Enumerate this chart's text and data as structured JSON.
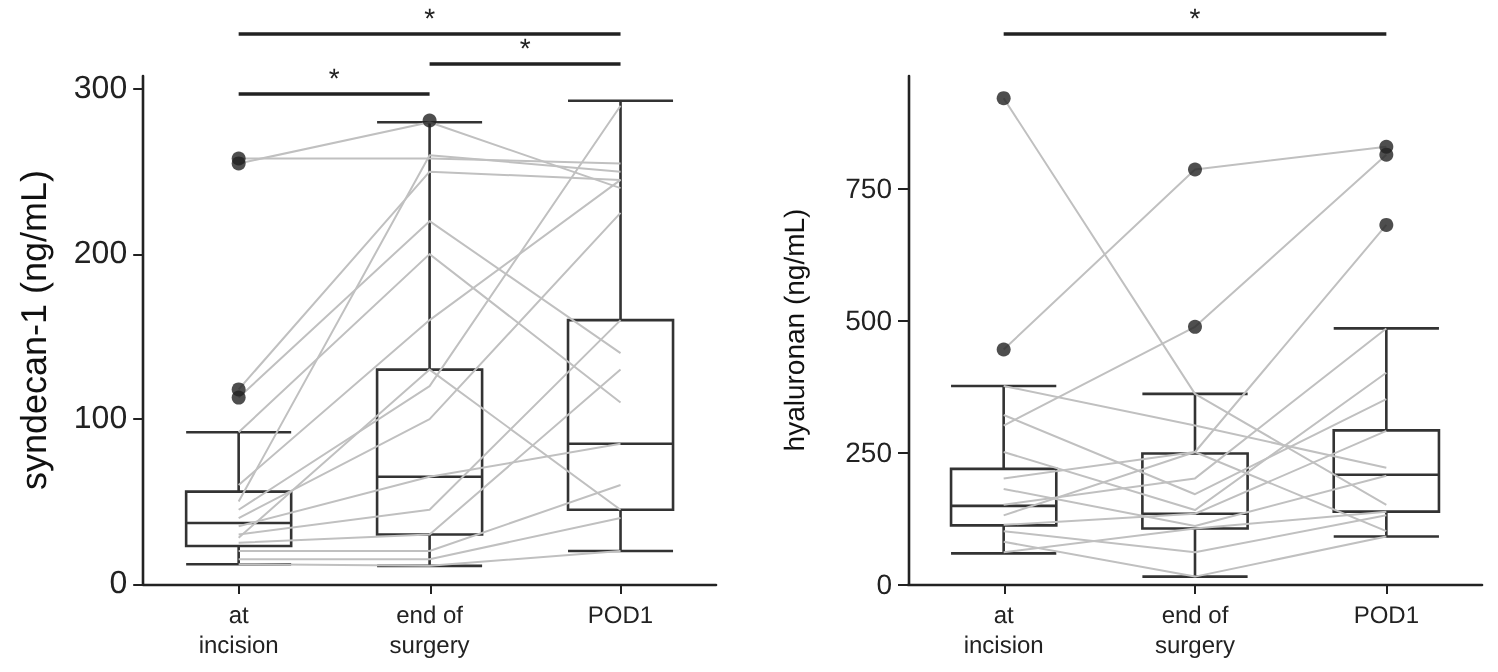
{
  "chart_data": [
    {
      "type": "box",
      "ylabel": "syndecan-1 (ng/mL)",
      "categories": [
        "at\nincision",
        "end of\nsurgery",
        "POD1"
      ],
      "ylim": [
        0,
        308
      ],
      "yticks": [
        0,
        100,
        200,
        300
      ],
      "grid": false,
      "annotations": [
        "*",
        "*",
        "*"
      ],
      "boxes": [
        {
          "low": 12,
          "q1": 23,
          "median": 37,
          "q3": 56,
          "high": 92,
          "outliers": [
            113,
            118,
            255,
            258
          ]
        },
        {
          "low": 11,
          "q1": 30,
          "median": 65,
          "q3": 130,
          "high": 280,
          "outliers": [
            281
          ]
        },
        {
          "low": 20,
          "q1": 45,
          "median": 85,
          "q3": 160,
          "high": 293
        }
      ],
      "series": [
        {
          "type": "line",
          "color": "#c0c0c0",
          "values": [
            258,
            258,
            255
          ]
        },
        {
          "type": "line",
          "color": "#c0c0c0",
          "values": [
            255,
            280,
            240
          ]
        },
        {
          "type": "line",
          "color": "#c0c0c0",
          "values": [
            118,
            250,
            245
          ]
        },
        {
          "type": "line",
          "color": "#c0c0c0",
          "values": [
            113,
            220,
            140
          ]
        },
        {
          "type": "line",
          "color": "#c0c0c0",
          "values": [
            92,
            200,
            110
          ]
        },
        {
          "type": "line",
          "color": "#c0c0c0",
          "values": [
            60,
            160,
            245
          ]
        },
        {
          "type": "line",
          "color": "#c0c0c0",
          "values": [
            45,
            120,
            290
          ]
        },
        {
          "type": "line",
          "color": "#c0c0c0",
          "values": [
            40,
            100,
            225
          ]
        },
        {
          "type": "line",
          "color": "#c0c0c0",
          "values": [
            35,
            65,
            85
          ]
        },
        {
          "type": "line",
          "color": "#c0c0c0",
          "values": [
            30,
            45,
            160
          ]
        },
        {
          "type": "line",
          "color": "#c0c0c0",
          "values": [
            25,
            30,
            130
          ]
        },
        {
          "type": "line",
          "color": "#c0c0c0",
          "values": [
            20,
            20,
            60
          ]
        },
        {
          "type": "line",
          "color": "#c0c0c0",
          "values": [
            15,
            15,
            40
          ]
        },
        {
          "type": "line",
          "color": "#c0c0c0",
          "values": [
            12,
            11,
            20
          ]
        },
        {
          "type": "line",
          "color": "#c0c0c0",
          "values": [
            50,
            260,
            250
          ]
        },
        {
          "type": "line",
          "color": "#c0c0c0",
          "values": [
            28,
            130,
            45
          ]
        }
      ]
    },
    {
      "type": "box",
      "ylabel": "hyaluronan (ng/mL)",
      "categories": [
        "at\nincision",
        "end of\nsurgery",
        "POD1"
      ],
      "ylim": [
        0,
        962
      ],
      "yticks": [
        0,
        250,
        500,
        750
      ],
      "grid": false,
      "annotations": [
        "*"
      ],
      "boxes": [
        {
          "low": 58,
          "q1": 111,
          "median": 148,
          "q3": 218,
          "high": 375,
          "outliers": [
            444,
            920
          ]
        },
        {
          "low": 14,
          "q1": 105,
          "median": 133,
          "q3": 247,
          "high": 360,
          "outliers": [
            487,
            785
          ]
        },
        {
          "low": 90,
          "q1": 137,
          "median": 207,
          "q3": 291,
          "high": 484,
          "outliers": [
            680,
            813,
            828
          ]
        }
      ],
      "series": [
        {
          "type": "line",
          "color": "#c0c0c0",
          "values": [
            920,
            360,
            150
          ]
        },
        {
          "type": "line",
          "color": "#c0c0c0",
          "values": [
            444,
            785,
            828
          ]
        },
        {
          "type": "line",
          "color": "#c0c0c0",
          "values": [
            300,
            487,
            813
          ]
        },
        {
          "type": "line",
          "color": "#c0c0c0",
          "values": [
            200,
            250,
            680
          ]
        },
        {
          "type": "line",
          "color": "#c0c0c0",
          "values": [
            375,
            300,
            220
          ]
        },
        {
          "type": "line",
          "color": "#c0c0c0",
          "values": [
            150,
            200,
            484
          ]
        },
        {
          "type": "line",
          "color": "#c0c0c0",
          "values": [
            112,
            133,
            290
          ]
        },
        {
          "type": "line",
          "color": "#c0c0c0",
          "values": [
            60,
            105,
            137
          ]
        },
        {
          "type": "line",
          "color": "#c0c0c0",
          "values": [
            100,
            60,
            130
          ]
        },
        {
          "type": "line",
          "color": "#c0c0c0",
          "values": [
            250,
            140,
            400
          ]
        },
        {
          "type": "line",
          "color": "#c0c0c0",
          "values": [
            180,
            110,
            205
          ]
        },
        {
          "type": "line",
          "color": "#c0c0c0",
          "values": [
            80,
            14,
            90
          ]
        },
        {
          "type": "line",
          "color": "#c0c0c0",
          "values": [
            320,
            170,
            350
          ]
        },
        {
          "type": "line",
          "color": "#c0c0c0",
          "values": [
            130,
            250,
            100
          ]
        }
      ]
    }
  ]
}
